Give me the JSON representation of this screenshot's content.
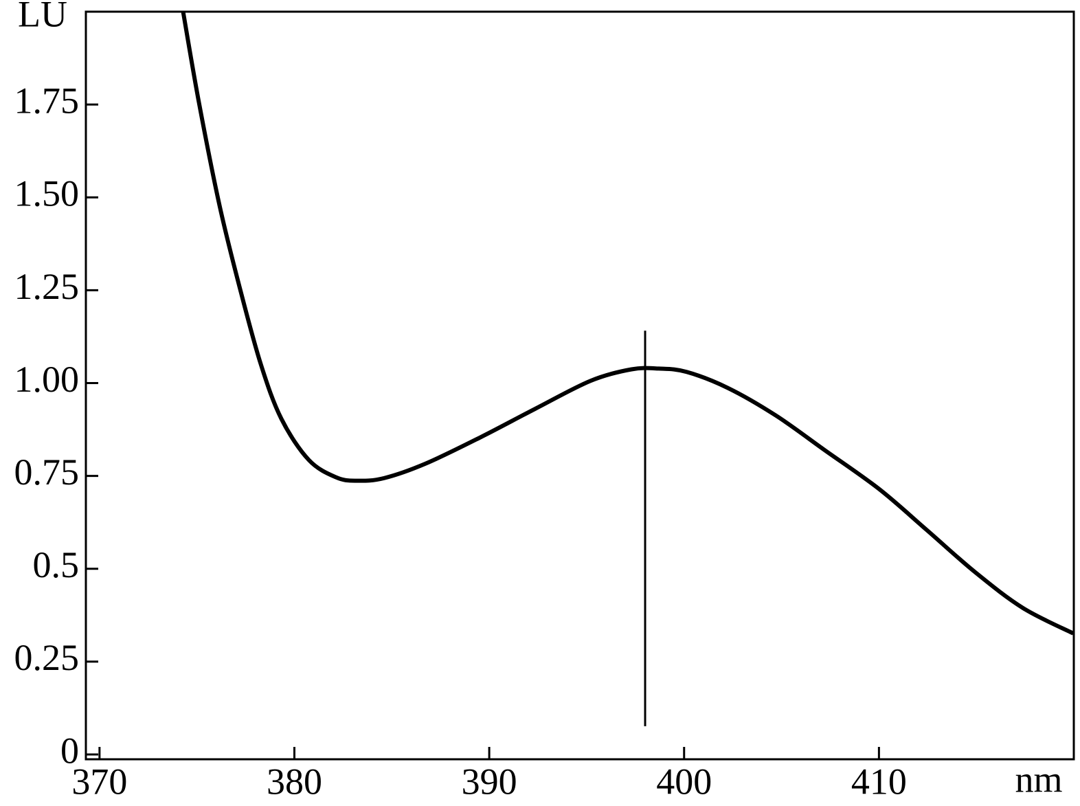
{
  "chart_data": {
    "type": "line",
    "x_label": "nm",
    "y_label": "LU",
    "x": [
      374.29,
      375.1,
      376.16,
      377.2,
      378.27,
      379.33,
      380.74,
      382.15,
      383.2,
      384.6,
      386.73,
      389.55,
      392.37,
      395.2,
      397.3,
      398.7,
      400.13,
      402.24,
      404.7,
      407.2,
      410.0,
      412.46,
      414.93,
      417.4,
      419.97
    ],
    "series": [
      {
        "color": "#000000",
        "values": [
          2.0,
          1.756,
          1.478,
          1.256,
          1.052,
          0.904,
          0.793,
          0.746,
          0.737,
          0.744,
          0.783,
          0.854,
          0.931,
          1.006,
          1.037,
          1.039,
          1.03,
          0.987,
          0.913,
          0.82,
          0.715,
          0.604,
          0.491,
          0.394,
          0.326
        ]
      }
    ],
    "marker": {
      "x": 398,
      "y": [
        0.076,
        1.141
      ]
    },
    "xlim": [
      369.3,
      420
    ],
    "xticks": [
      370,
      380,
      390,
      400,
      410
    ],
    "ylim": [
      -0.013,
      2.0
    ],
    "yticks": [
      0,
      0.25,
      0.5,
      0.75,
      {
        "value": 1,
        "label": "1.00"
      },
      1.25,
      {
        "value": 1.5,
        "label": "1.50"
      },
      1.75
    ]
  }
}
